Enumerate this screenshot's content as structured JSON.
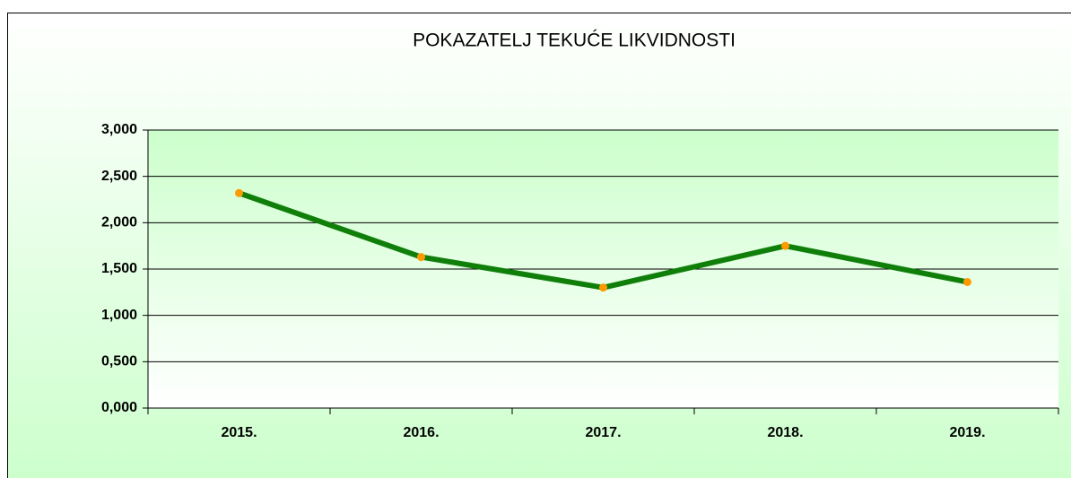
{
  "chart_data": {
    "type": "line",
    "title": "POKAZATELJ TEKUĆE LIKVIDNOSTI",
    "categories": [
      "2015.",
      "2016.",
      "2017.",
      "2018.",
      "2019."
    ],
    "series": [
      {
        "name": "Pokazatelj tekuće likvidnosti",
        "color": "#0f7f0a",
        "marker_color": "#ff9900",
        "values": [
          2.32,
          1.63,
          1.3,
          1.75,
          1.36
        ]
      }
    ],
    "ylim": [
      0,
      3
    ],
    "yticks": [
      {
        "value": 0,
        "label": "0,000"
      },
      {
        "value": 0.5,
        "label": "0,500"
      },
      {
        "value": 1,
        "label": "1,000"
      },
      {
        "value": 1.5,
        "label": "1,500"
      },
      {
        "value": 2,
        "label": "2,000"
      },
      {
        "value": 2.5,
        "label": "2,500"
      },
      {
        "value": 3,
        "label": "3,000"
      }
    ],
    "grid": true,
    "legend": false
  }
}
